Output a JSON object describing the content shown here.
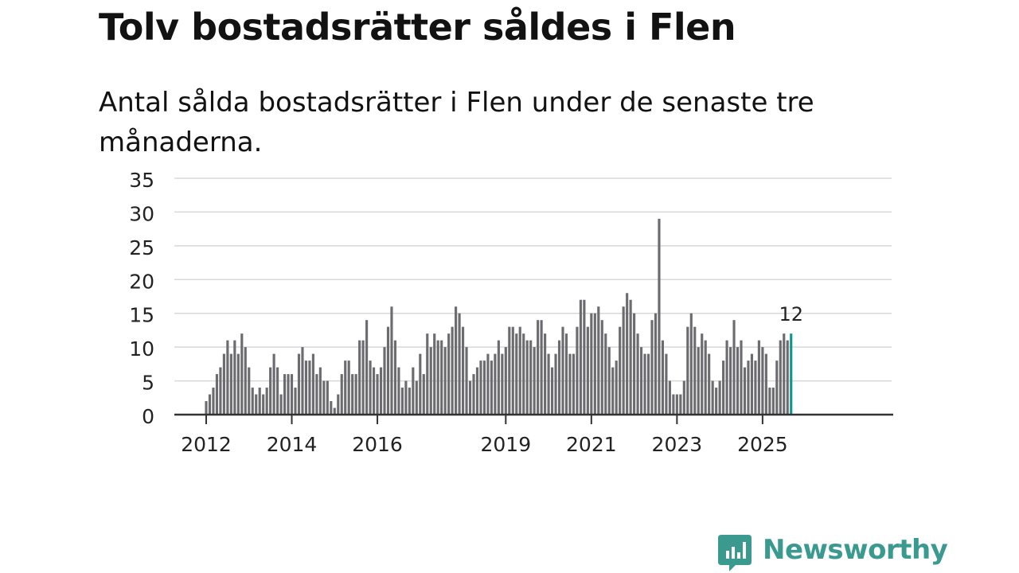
{
  "title": "Tolv bostadsrätter såldes i Flen",
  "subtitle": "Antal sålda bostadsrätter i Flen under de senaste tre månaderna.",
  "brand": {
    "name": "Newsworthy",
    "icon": "newsworthy-chat-bars-icon",
    "color": "#3a9a90"
  },
  "colors": {
    "bar": "#6b6b70",
    "highlight": "#12968b",
    "grid": "#d8d8d8",
    "axis": "#333333",
    "text": "#222222"
  },
  "chart_data": {
    "type": "bar",
    "title": "Tolv bostadsrätter såldes i Flen",
    "xlabel": "",
    "ylabel": "",
    "ylim": [
      0,
      35
    ],
    "yticks": [
      0,
      5,
      10,
      15,
      20,
      25,
      30,
      35
    ],
    "grid": true,
    "frequency": "monthly",
    "start": "2012-01",
    "xtick_labels": [
      {
        "label": "2012",
        "index": 0
      },
      {
        "label": "2014",
        "index": 24
      },
      {
        "label": "2016",
        "index": 48
      },
      {
        "label": "2019",
        "index": 84
      },
      {
        "label": "2021",
        "index": 108
      },
      {
        "label": "2023",
        "index": 132
      },
      {
        "label": "2025",
        "index": 156
      }
    ],
    "values": [
      2,
      3,
      4,
      6,
      7,
      9,
      11,
      9,
      11,
      9,
      12,
      10,
      7,
      4,
      3,
      4,
      3,
      4,
      7,
      9,
      7,
      3,
      6,
      6,
      6,
      4,
      9,
      10,
      8,
      8,
      9,
      6,
      7,
      5,
      5,
      2,
      1,
      3,
      6,
      8,
      8,
      6,
      6,
      11,
      11,
      14,
      8,
      7,
      6,
      7,
      10,
      13,
      16,
      11,
      7,
      4,
      5,
      4,
      7,
      5,
      9,
      6,
      12,
      10,
      12,
      11,
      11,
      10,
      12,
      13,
      16,
      15,
      13,
      10,
      5,
      6,
      7,
      8,
      8,
      9,
      8,
      9,
      11,
      9,
      10,
      13,
      13,
      12,
      13,
      12,
      11,
      11,
      10,
      14,
      14,
      12,
      9,
      7,
      9,
      11,
      13,
      12,
      9,
      9,
      13,
      17,
      17,
      13,
      15,
      15,
      16,
      14,
      12,
      10,
      7,
      8,
      13,
      16,
      18,
      17,
      15,
      12,
      10,
      9,
      9,
      14,
      15,
      29,
      11,
      9,
      5,
      3,
      3,
      3,
      5,
      13,
      15,
      13,
      10,
      12,
      11,
      9,
      5,
      4,
      5,
      8,
      11,
      10,
      14,
      10,
      11,
      7,
      8,
      9,
      8,
      11,
      10,
      9,
      4,
      4,
      8,
      11,
      12,
      11,
      12
    ],
    "highlight": {
      "index": 164,
      "value": 12,
      "label": "12"
    }
  }
}
